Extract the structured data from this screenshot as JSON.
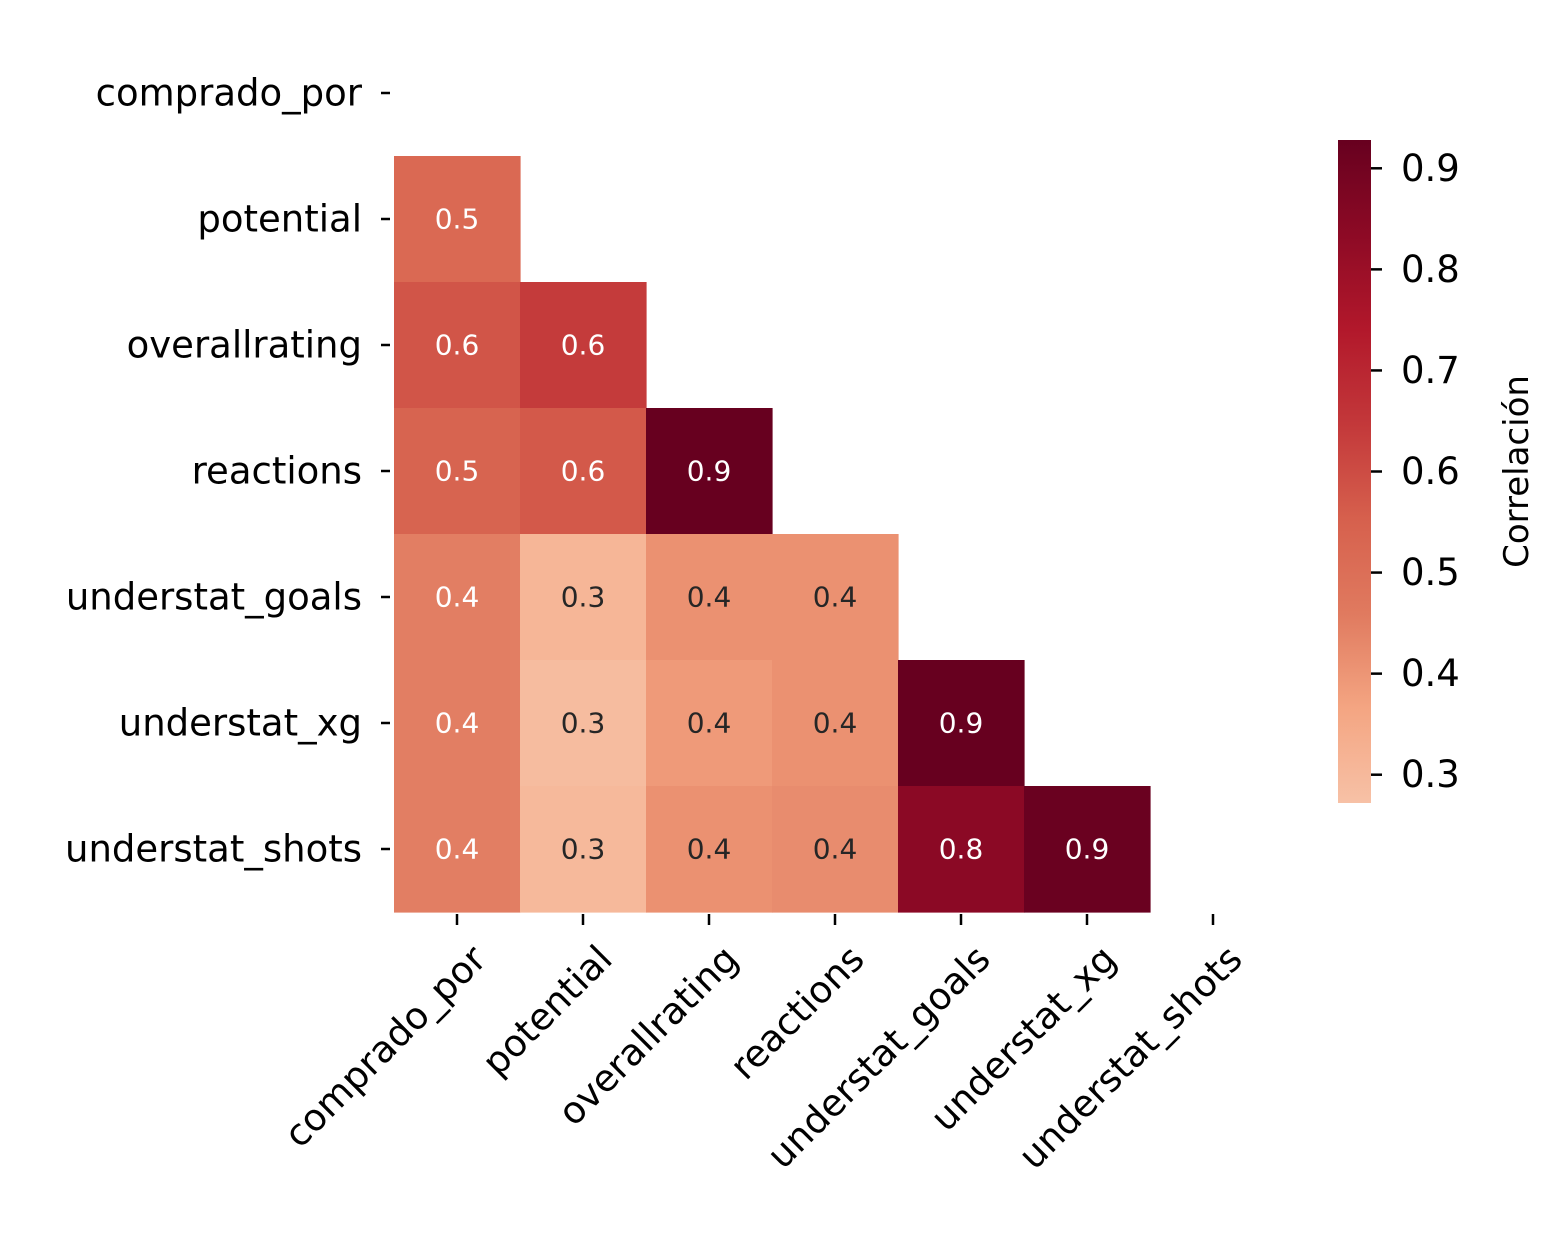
{
  "chart_data": {
    "type": "heatmap",
    "title": "",
    "xlabel": "",
    "ylabel": "",
    "mask": "upper-triangle-including-diagonal",
    "variables": [
      "comprado_por",
      "potential",
      "overallrating",
      "reactions",
      "understat_goals",
      "understat_xg",
      "understat_shots"
    ],
    "cells": [
      {
        "row": 1,
        "col": 0,
        "value": 0.52,
        "label": "0.5"
      },
      {
        "row": 2,
        "col": 0,
        "value": 0.58,
        "label": "0.6"
      },
      {
        "row": 2,
        "col": 1,
        "value": 0.64,
        "label": "0.6"
      },
      {
        "row": 3,
        "col": 0,
        "value": 0.54,
        "label": "0.5"
      },
      {
        "row": 3,
        "col": 1,
        "value": 0.57,
        "label": "0.6"
      },
      {
        "row": 3,
        "col": 2,
        "value": 0.93,
        "label": "0.9"
      },
      {
        "row": 4,
        "col": 0,
        "value": 0.45,
        "label": "0.4"
      },
      {
        "row": 4,
        "col": 1,
        "value": 0.31,
        "label": "0.3"
      },
      {
        "row": 4,
        "col": 2,
        "value": 0.41,
        "label": "0.4"
      },
      {
        "row": 4,
        "col": 3,
        "value": 0.41,
        "label": "0.4"
      },
      {
        "row": 5,
        "col": 0,
        "value": 0.45,
        "label": "0.4"
      },
      {
        "row": 5,
        "col": 1,
        "value": 0.29,
        "label": "0.3"
      },
      {
        "row": 5,
        "col": 2,
        "value": 0.39,
        "label": "0.4"
      },
      {
        "row": 5,
        "col": 3,
        "value": 0.41,
        "label": "0.4"
      },
      {
        "row": 5,
        "col": 4,
        "value": 0.93,
        "label": "0.9"
      },
      {
        "row": 6,
        "col": 0,
        "value": 0.45,
        "label": "0.4"
      },
      {
        "row": 6,
        "col": 1,
        "value": 0.3,
        "label": "0.3"
      },
      {
        "row": 6,
        "col": 2,
        "value": 0.41,
        "label": "0.4"
      },
      {
        "row": 6,
        "col": 3,
        "value": 0.42,
        "label": "0.4"
      },
      {
        "row": 6,
        "col": 4,
        "value": 0.84,
        "label": "0.8"
      },
      {
        "row": 6,
        "col": 5,
        "value": 0.92,
        "label": "0.9"
      }
    ],
    "colorbar": {
      "label": "Correlación",
      "vmin": 0.272,
      "vmax": 0.928,
      "ticks": [
        0.3,
        0.4,
        0.5,
        0.6,
        0.7,
        0.8,
        0.9
      ],
      "tick_labels": [
        "0.3",
        "0.4",
        "0.5",
        "0.6",
        "0.7",
        "0.8",
        "0.9"
      ],
      "colormap": "RdBu_r (upper half)",
      "color_stops": [
        "#f7c1a6",
        "#f4a582",
        "#e07a5f",
        "#d6604d",
        "#c3383a",
        "#b2182b",
        "#8d0a25",
        "#67001f"
      ],
      "placement": "right"
    },
    "grid": false
  }
}
